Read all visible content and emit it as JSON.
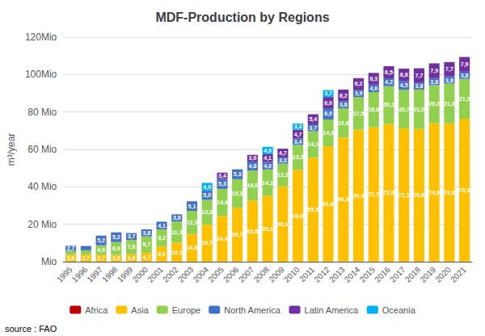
{
  "chart_data": {
    "type": "bar",
    "title": "MDF-Production by Regions",
    "ylabel": "m³/year",
    "annotations": [
      "source : FAO"
    ],
    "stacked": true,
    "data_labels": true,
    "grid": true,
    "legend": "bottom",
    "categories": [
      "1995",
      "1996",
      "1997",
      "1998",
      "1999",
      "2000",
      "2001",
      "2002",
      "2003",
      "2004",
      "2005",
      "2006",
      "2007",
      "2008",
      "2009",
      "2010",
      "2011",
      "2012",
      "2013",
      "2014",
      "2015",
      "2016",
      "2017",
      "2018",
      "2019",
      "2020",
      "2021"
    ],
    "ylim": [
      0,
      120
    ],
    "yticks": [
      {
        "value": 0,
        "label": "Mio"
      },
      {
        "value": 20,
        "label": "20 Mio"
      },
      {
        "value": 40,
        "label": "40 Mio"
      },
      {
        "value": 60,
        "label": "60 Mio"
      },
      {
        "value": 80,
        "label": "80 Mio"
      },
      {
        "value": 100,
        "label": "100Mio"
      },
      {
        "value": 120,
        "label": "120Mio"
      }
    ],
    "series": [
      {
        "name": "Africa",
        "color": "#c00000",
        "values": [
          0.1,
          0.1,
          0.1,
          0.1,
          0.1,
          0.1,
          0.1,
          0.1,
          0.1,
          0.1,
          0.1,
          0.1,
          0.1,
          0.1,
          0.1,
          0.1,
          0.1,
          0.1,
          0.1,
          0.1,
          0.1,
          0.1,
          0.1,
          0.1,
          0.1,
          0.1,
          0.1
        ],
        "value_labels": [
          null,
          null,
          null,
          null,
          null,
          null,
          null,
          null,
          null,
          null,
          null,
          null,
          null,
          null,
          null,
          null,
          null,
          null,
          null,
          null,
          null,
          null,
          null,
          null,
          null,
          null,
          null
        ]
      },
      {
        "name": "Asia",
        "color": "#ffc000",
        "values": [
          3.6,
          3.7,
          3.7,
          3.5,
          3.9,
          4.7,
          8.0,
          10.1,
          14.8,
          19.7,
          24.4,
          28.7,
          32.6,
          35.1,
          40.1,
          49.0,
          55.5,
          61.6,
          66.3,
          70.4,
          71.7,
          73.6,
          71.1,
          70.8,
          74.0,
          73.8,
          76.3
        ],
        "value_labels": [
          "3,6",
          "3,7",
          "3,7",
          "3,5",
          "3,9",
          "4,7",
          "8,0",
          "10,1",
          "14,8",
          "19,7",
          "24,4",
          "28,7",
          "32,6",
          "35,1",
          "40,1",
          "49,0",
          "55,5",
          "61,6",
          "66,3",
          "70,4",
          "71,7",
          "73,6",
          "71,1",
          "70,8",
          "74,0",
          "73,8",
          "76,3"
        ]
      },
      {
        "name": "Europe",
        "color": "#92d050",
        "values": [
          2.1,
          2.3,
          4.9,
          6.9,
          7.6,
          8.7,
          9.2,
          11.3,
          12.3,
          13.3,
          14.4,
          15.3,
          16.0,
          14.1,
          12.2,
          13.3,
          14.1,
          14.3,
          15.6,
          17.5,
          18.8,
          20.1,
          20.7,
          21.0,
          20.2,
          21.3,
          21.3
        ],
        "value_labels": [
          null,
          null,
          "4,9",
          "6,9",
          "7,6",
          "8,7",
          "9,2",
          "11,3",
          "12,3",
          "13,3",
          "14,4",
          "15,3",
          "16,0",
          "14,1",
          "12,2",
          "13,3",
          "14,1",
          "14,3",
          "15,6",
          "17,5",
          "18,8",
          "20,1",
          "20,7",
          "21,0",
          "20,2",
          "21,3",
          "21,3"
        ]
      },
      {
        "name": "North America",
        "color": "#4472c4",
        "values": [
          2.7,
          2.3,
          5.2,
          5.2,
          3.7,
          3.8,
          4.1,
          3.8,
          5.1,
          5.0,
          5.3,
          5.3,
          4.8,
          4.0,
          3.3,
          3.4,
          3.7,
          6.0,
          3.8,
          3.9,
          4.0,
          4.2,
          4.5,
          3.8,
          3.8,
          3.8,
          3.8
        ],
        "value_labels": [
          "2,7",
          null,
          "5,2",
          "5,2",
          "3,7",
          "3,8",
          "4,1",
          "3,8",
          "5,1",
          "5,0",
          "5,3",
          "5,3",
          "4,8",
          "4,0",
          "3,3",
          "3,4",
          "3,7",
          "6,0",
          "3,8",
          "3,9",
          "4,0",
          "4,2",
          "4,5",
          "3,8",
          "3,8",
          "3,8",
          "3,8"
        ]
      },
      {
        "name": "Latin America",
        "color": "#7030a0",
        "values": [
          0.0,
          0.0,
          0.0,
          0.0,
          0.0,
          0.0,
          0.0,
          0.0,
          0.0,
          0.0,
          3.4,
          0.0,
          3.6,
          4.1,
          4.7,
          4.7,
          5.4,
          6.0,
          6.2,
          6.2,
          6.3,
          6.5,
          6.8,
          7.7,
          7.9,
          7.7,
          7.9
        ],
        "value_labels": [
          null,
          null,
          null,
          null,
          null,
          null,
          null,
          null,
          null,
          null,
          "3,4",
          null,
          "3,6",
          "4,1",
          "4,7",
          "4,7",
          "5,4",
          "6,0",
          "6,2",
          "6,2",
          "6,3",
          "6,5",
          "6,8",
          "7,7",
          "7,9",
          "7,7",
          "7,9"
        ]
      },
      {
        "name": "Oceania",
        "color": "#00b0f0",
        "values": [
          0.0,
          0.0,
          0.0,
          0.0,
          0.0,
          0.0,
          0.0,
          0.0,
          0.0,
          4.0,
          0.0,
          0.0,
          0.0,
          4.0,
          0.0,
          3.3,
          0.0,
          3.7,
          0.0,
          0.0,
          0.0,
          0.0,
          0.0,
          0.0,
          0.0,
          0.0,
          0.0
        ],
        "value_labels": [
          null,
          null,
          null,
          null,
          null,
          null,
          null,
          null,
          null,
          "4,0",
          null,
          null,
          null,
          "4,0",
          null,
          "3,3",
          null,
          "3,7",
          null,
          null,
          null,
          null,
          null,
          null,
          null,
          null,
          null
        ]
      }
    ]
  }
}
